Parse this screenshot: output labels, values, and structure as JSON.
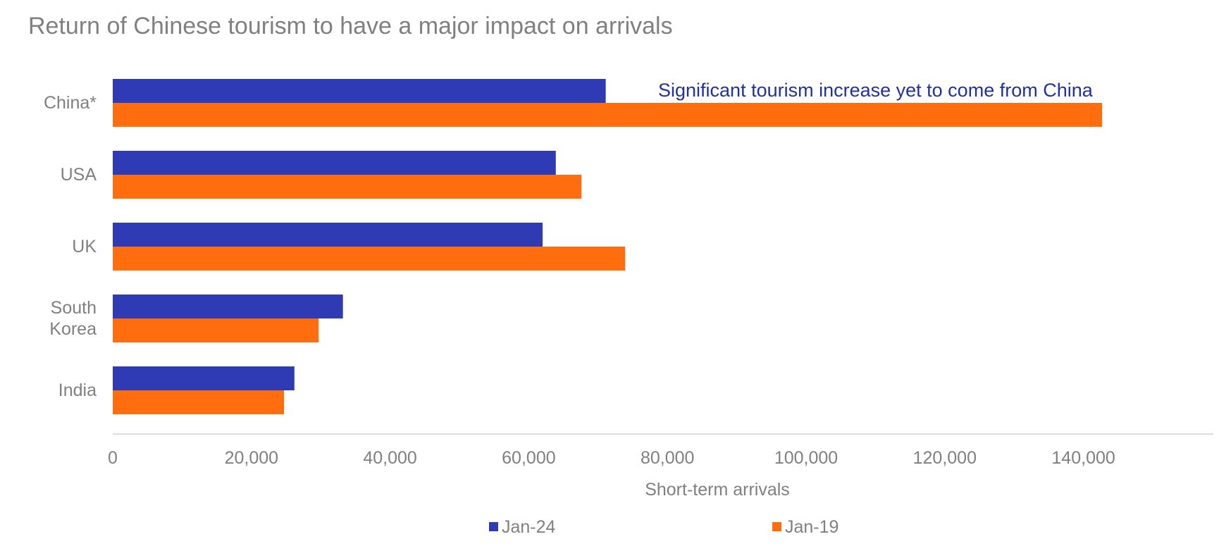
{
  "chart_data": {
    "type": "bar",
    "orientation": "horizontal",
    "title": "Return of Chinese tourism to have a major impact on arrivals",
    "xlabel": "Short-term arrivals",
    "ylabel": "",
    "categories": [
      [
        "China*"
      ],
      [
        "USA"
      ],
      [
        "UK"
      ],
      [
        "South",
        "Korea"
      ],
      [
        "India"
      ]
    ],
    "series": [
      {
        "name": "Jan-24",
        "color": "#2e3bb5",
        "values": [
          71100,
          63900,
          62000,
          33200,
          26200
        ]
      },
      {
        "name": "Jan-19",
        "color": "#ff6d0f",
        "values": [
          142700,
          67600,
          73900,
          29700,
          24700
        ]
      }
    ],
    "xlim": [
      0,
      150000
    ],
    "xticks": [
      0,
      20000,
      40000,
      60000,
      80000,
      100000,
      120000,
      140000
    ],
    "xtick_labels": [
      "0",
      "20,000",
      "40,000",
      "60,000",
      "80,000",
      "100,000",
      "120,000",
      "140,000"
    ],
    "grid": false,
    "legend_position": "bottom",
    "annotation": {
      "text": "Significant tourism increase yet to come from China",
      "color": "#2230a0",
      "category": "China*"
    }
  }
}
